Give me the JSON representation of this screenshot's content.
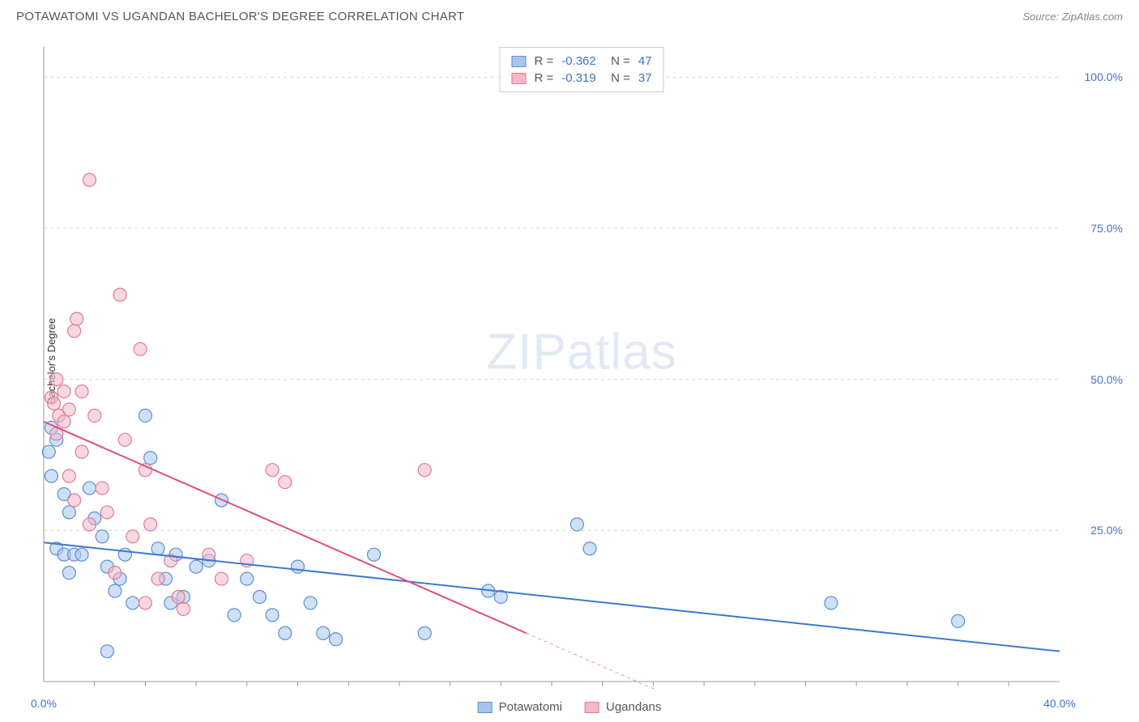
{
  "header": {
    "title": "POTAWATOMI VS UGANDAN BACHELOR'S DEGREE CORRELATION CHART",
    "source": "Source: ZipAtlas.com"
  },
  "chart": {
    "type": "scatter",
    "ylabel": "Bachelor's Degree",
    "watermark_zip": "ZIP",
    "watermark_atlas": "atlas",
    "xlim": [
      0,
      40
    ],
    "ylim": [
      0,
      105
    ],
    "xtick_labels": [
      "0.0%",
      "40.0%"
    ],
    "xtick_positions": [
      0,
      40
    ],
    "ytick_labels": [
      "25.0%",
      "50.0%",
      "75.0%",
      "100.0%"
    ],
    "ytick_positions": [
      25,
      50,
      75,
      100
    ],
    "xminor_ticks": [
      2,
      4,
      6,
      8,
      10,
      12,
      14,
      16,
      18,
      20,
      22,
      24,
      26,
      28,
      30,
      32,
      34,
      36,
      38
    ],
    "grid_color": "#d8d8d8",
    "axis_color": "#999",
    "background_color": "#ffffff",
    "series": [
      {
        "name": "Potawatomi",
        "fill": "#a8c6ed",
        "stroke": "#5b8fd6",
        "fill_opacity": 0.55,
        "R": "-0.362",
        "N": "47",
        "trend": {
          "x1": 0,
          "y1": 23,
          "x2": 40,
          "y2": 5,
          "color": "#3b78d8",
          "width": 2,
          "dash_after": 40
        },
        "points": [
          [
            0.2,
            38
          ],
          [
            0.3,
            42
          ],
          [
            0.5,
            40
          ],
          [
            0.3,
            34
          ],
          [
            0.8,
            31
          ],
          [
            1.0,
            28
          ],
          [
            0.5,
            22
          ],
          [
            0.8,
            21
          ],
          [
            1.2,
            21
          ],
          [
            1.5,
            21
          ],
          [
            1.0,
            18
          ],
          [
            2.0,
            27
          ],
          [
            1.8,
            32
          ],
          [
            2.3,
            24
          ],
          [
            2.5,
            19
          ],
          [
            3.0,
            17
          ],
          [
            3.2,
            21
          ],
          [
            3.5,
            13
          ],
          [
            2.8,
            15
          ],
          [
            4.0,
            44
          ],
          [
            4.2,
            37
          ],
          [
            4.5,
            22
          ],
          [
            4.8,
            17
          ],
          [
            5.0,
            13
          ],
          [
            5.2,
            21
          ],
          [
            5.5,
            14
          ],
          [
            6.0,
            19
          ],
          [
            6.5,
            20
          ],
          [
            7.0,
            30
          ],
          [
            7.5,
            11
          ],
          [
            8.0,
            17
          ],
          [
            8.5,
            14
          ],
          [
            9.0,
            11
          ],
          [
            9.5,
            8
          ],
          [
            10.0,
            19
          ],
          [
            10.5,
            13
          ],
          [
            11.0,
            8
          ],
          [
            11.5,
            7
          ],
          [
            13.0,
            21
          ],
          [
            15.0,
            8
          ],
          [
            17.5,
            15
          ],
          [
            18.0,
            14
          ],
          [
            21.0,
            26
          ],
          [
            21.5,
            22
          ],
          [
            31.0,
            13
          ],
          [
            36.0,
            10
          ],
          [
            2.5,
            5
          ]
        ]
      },
      {
        "name": "Ugandans",
        "fill": "#f2b8c6",
        "stroke": "#e07a94",
        "fill_opacity": 0.55,
        "R": "-0.319",
        "N": "37",
        "trend": {
          "x1": 0,
          "y1": 43,
          "x2": 19,
          "y2": 8,
          "dash_x2": 25,
          "dash_y2": -3,
          "color": "#e04f7a",
          "width": 2
        },
        "points": [
          [
            0.3,
            47
          ],
          [
            0.5,
            50
          ],
          [
            0.4,
            46
          ],
          [
            0.6,
            44
          ],
          [
            0.8,
            48
          ],
          [
            0.5,
            41
          ],
          [
            0.8,
            43
          ],
          [
            1.0,
            45
          ],
          [
            1.2,
            58
          ],
          [
            1.3,
            60
          ],
          [
            1.5,
            48
          ],
          [
            1.0,
            34
          ],
          [
            1.5,
            38
          ],
          [
            1.2,
            30
          ],
          [
            2.0,
            44
          ],
          [
            1.8,
            26
          ],
          [
            2.3,
            32
          ],
          [
            2.5,
            28
          ],
          [
            3.0,
            64
          ],
          [
            3.2,
            40
          ],
          [
            3.5,
            24
          ],
          [
            3.8,
            55
          ],
          [
            4.0,
            35
          ],
          [
            4.2,
            26
          ],
          [
            4.5,
            17
          ],
          [
            5.0,
            20
          ],
          [
            5.5,
            12
          ],
          [
            6.5,
            21
          ],
          [
            7.0,
            17
          ],
          [
            8.0,
            20
          ],
          [
            9.0,
            35
          ],
          [
            9.5,
            33
          ],
          [
            1.8,
            83
          ],
          [
            4.0,
            13
          ],
          [
            5.3,
            14
          ],
          [
            2.8,
            18
          ],
          [
            15.0,
            35
          ]
        ]
      }
    ],
    "legend_top": [
      {
        "swatch_fill": "#a8c6ed",
        "swatch_stroke": "#5b8fd6",
        "R": "-0.362",
        "N": "47"
      },
      {
        "swatch_fill": "#f2b8c6",
        "swatch_stroke": "#e07a94",
        "R": "-0.319",
        "N": "37"
      }
    ],
    "legend_bottom": [
      {
        "swatch_fill": "#a8c6ed",
        "swatch_stroke": "#5b8fd6",
        "label": "Potawatomi"
      },
      {
        "swatch_fill": "#f2b8c6",
        "swatch_stroke": "#e07a94",
        "label": "Ugandans"
      }
    ],
    "marker_radius": 8,
    "label_fontsize": 14,
    "title_fontsize": 15
  }
}
